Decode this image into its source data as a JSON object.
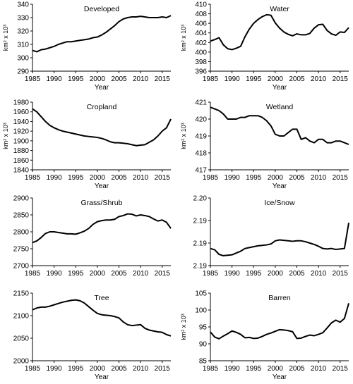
{
  "chart_data": [
    {
      "type": "line",
      "title": "Developed",
      "xlabel": "Year",
      "ylabel": "km² x 10³",
      "xlim": [
        1985,
        2017
      ],
      "ylim": [
        290,
        340
      ],
      "xticks": [
        "1985",
        "1990",
        "1995",
        "2000",
        "2005",
        "2010",
        "2015"
      ],
      "yticks": [
        "290",
        "300",
        "310",
        "320",
        "330",
        "340"
      ],
      "grid": false,
      "legend": "none",
      "x": [
        1985,
        1986,
        1987,
        1988,
        1989,
        1990,
        1991,
        1992,
        1993,
        1994,
        1995,
        1996,
        1997,
        1998,
        1999,
        2000,
        2001,
        2002,
        2003,
        2004,
        2005,
        2006,
        2007,
        2008,
        2009,
        2010,
        2011,
        2012,
        2013,
        2014,
        2015,
        2016,
        2017
      ],
      "series": [
        {
          "values": [
            305.5,
            304.5,
            306,
            306.5,
            307.5,
            308.5,
            310,
            311,
            312,
            312,
            312.5,
            313,
            313.5,
            314,
            315,
            315.5,
            317,
            319,
            321.5,
            324,
            327,
            329,
            330,
            330.5,
            330.5,
            331,
            330.5,
            330,
            330,
            330,
            330.5,
            330,
            331.5
          ]
        }
      ]
    },
    {
      "type": "line",
      "title": "Water",
      "xlabel": "Year",
      "ylabel": "km² x 10³",
      "xlim": [
        1985,
        2017
      ],
      "ylim": [
        396,
        410
      ],
      "xticks": [
        "1985",
        "1990",
        "1995",
        "2000",
        "2005",
        "2010",
        "2015"
      ],
      "yticks": [
        "396",
        "398",
        "400",
        "402",
        "404",
        "406",
        "408",
        "410"
      ],
      "grid": false,
      "legend": "none",
      "x": [
        1985,
        1986,
        1987,
        1988,
        1989,
        1990,
        1991,
        1992,
        1993,
        1994,
        1995,
        1996,
        1997,
        1998,
        1999,
        2000,
        2001,
        2002,
        2003,
        2004,
        2005,
        2006,
        2007,
        2008,
        2009,
        2010,
        2011,
        2012,
        2013,
        2014,
        2015,
        2016,
        2017
      ],
      "series": [
        {
          "values": [
            402.3,
            402.6,
            403,
            401.5,
            400.7,
            400.5,
            400.8,
            401.2,
            403.2,
            404.8,
            406,
            406.8,
            407.4,
            407.8,
            407.7,
            406.1,
            405,
            404.2,
            403.7,
            403.4,
            403.8,
            403.6,
            403.6,
            403.9,
            405,
            405.7,
            405.8,
            404.5,
            403.8,
            403.5,
            404.2,
            404.1,
            405.1
          ]
        }
      ]
    },
    {
      "type": "line",
      "title": "Cropland",
      "xlabel": "Year",
      "ylabel": "km² x 10³",
      "xlim": [
        1985,
        2017
      ],
      "ylim": [
        1840,
        1980
      ],
      "xticks": [
        "1985",
        "1990",
        "1995",
        "2000",
        "2005",
        "2010",
        "2015"
      ],
      "yticks": [
        "1840",
        "1860",
        "1880",
        "1900",
        "1920",
        "1940",
        "1960",
        "1980"
      ],
      "grid": false,
      "legend": "none",
      "x": [
        1985,
        1986,
        1987,
        1988,
        1989,
        1990,
        1991,
        1992,
        1993,
        1994,
        1995,
        1996,
        1997,
        1998,
        1999,
        2000,
        2001,
        2002,
        2003,
        2004,
        2005,
        2006,
        2007,
        2008,
        2009,
        2010,
        2011,
        2012,
        2013,
        2014,
        2015,
        2016,
        2017
      ],
      "series": [
        {
          "values": [
            1966,
            1960,
            1950,
            1940,
            1932,
            1927,
            1923,
            1920,
            1918,
            1916,
            1914,
            1912,
            1910,
            1909,
            1908,
            1907,
            1905,
            1902,
            1898,
            1896,
            1896,
            1895,
            1894,
            1892,
            1890,
            1891,
            1892,
            1897,
            1902,
            1910,
            1920,
            1927,
            1945
          ]
        }
      ]
    },
    {
      "type": "line",
      "title": "Wetland",
      "xlabel": "Year",
      "ylabel": "km² x 10³",
      "xlim": [
        1985,
        2017
      ],
      "ylim": [
        417,
        421
      ],
      "xticks": [
        "1985",
        "1990",
        "1995",
        "2000",
        "2005",
        "2010",
        "2015"
      ],
      "yticks": [
        "417",
        "418",
        "419",
        "420",
        "421"
      ],
      "grid": false,
      "legend": "none",
      "x": [
        1985,
        1986,
        1987,
        1988,
        1989,
        1990,
        1991,
        1992,
        1993,
        1994,
        1995,
        1996,
        1997,
        1998,
        1999,
        2000,
        2001,
        2002,
        2003,
        2004,
        2005,
        2006,
        2007,
        2008,
        2009,
        2010,
        2011,
        2012,
        2013,
        2014,
        2015,
        2016,
        2017
      ],
      "series": [
        {
          "values": [
            420.7,
            420.6,
            420.5,
            420.3,
            420.0,
            420.0,
            420.0,
            420.1,
            420.1,
            420.2,
            420.2,
            420.2,
            420.1,
            419.9,
            419.6,
            419.1,
            419.0,
            419.0,
            419.2,
            419.4,
            419.4,
            418.8,
            418.9,
            418.7,
            418.6,
            418.8,
            418.8,
            418.6,
            418.6,
            418.7,
            418.7,
            418.6,
            418.5
          ]
        }
      ]
    },
    {
      "type": "line",
      "title": "Grass/Shrub",
      "xlabel": "",
      "ylabel": "",
      "xlim": [
        1985,
        2017
      ],
      "ylim": [
        2700,
        2900
      ],
      "xticks": [
        "1985",
        "1990",
        "1995",
        "2000",
        "2005",
        "2010",
        "2015"
      ],
      "yticks": [
        "2700",
        "2750",
        "2800",
        "2850",
        "2900"
      ],
      "grid": false,
      "legend": "none",
      "x": [
        1985,
        1986,
        1987,
        1988,
        1989,
        1990,
        1991,
        1992,
        1993,
        1994,
        1995,
        1996,
        1997,
        1998,
        1999,
        2000,
        2001,
        2002,
        2003,
        2004,
        2005,
        2006,
        2007,
        2008,
        2009,
        2010,
        2011,
        2012,
        2013,
        2014,
        2015,
        2016,
        2017
      ],
      "series": [
        {
          "values": [
            2768,
            2773,
            2783,
            2795,
            2800,
            2800,
            2798,
            2796,
            2794,
            2794,
            2793,
            2797,
            2802,
            2810,
            2822,
            2830,
            2833,
            2835,
            2835,
            2837,
            2845,
            2848,
            2853,
            2852,
            2847,
            2850,
            2848,
            2845,
            2838,
            2832,
            2835,
            2828,
            2810
          ]
        }
      ]
    },
    {
      "type": "line",
      "title": "Ice/Snow",
      "xlabel": "",
      "ylabel": "",
      "xlim": [
        1985,
        2017
      ],
      "ylim": [
        2.185,
        2.2
      ],
      "xticks": [
        "1985",
        "1990",
        "1995",
        "2000",
        "2005",
        "2010",
        "2015"
      ],
      "yticks": [
        "2.19",
        "2.19",
        "2.19",
        "2.20"
      ],
      "grid": false,
      "legend": "none",
      "x": [
        1985,
        1986,
        1987,
        1988,
        1989,
        1990,
        1991,
        1992,
        1993,
        1994,
        1995,
        1996,
        1997,
        1998,
        1999,
        2000,
        2001,
        2002,
        2003,
        2004,
        2005,
        2006,
        2007,
        2008,
        2009,
        2010,
        2011,
        2012,
        2013,
        2014,
        2015,
        2016,
        2017
      ],
      "series": [
        {
          "values": [
            2.1888,
            2.1885,
            2.1875,
            2.1872,
            2.1873,
            2.1874,
            2.1878,
            2.1882,
            2.1888,
            2.189,
            2.1892,
            2.1894,
            2.1895,
            2.1896,
            2.1898,
            2.1905,
            2.1907,
            2.1906,
            2.1905,
            2.1904,
            2.1905,
            2.1905,
            2.1903,
            2.19,
            2.1897,
            2.1893,
            2.1888,
            2.1887,
            2.1888,
            2.1886,
            2.1887,
            2.1888,
            2.1945
          ]
        }
      ]
    },
    {
      "type": "line",
      "title": "Tree",
      "xlabel": "Year",
      "ylabel": "",
      "xlim": [
        1985,
        2017
      ],
      "ylim": [
        2000,
        2150
      ],
      "xticks": [
        "1985",
        "1990",
        "1995",
        "2000",
        "2005",
        "2010",
        "2015"
      ],
      "yticks": [
        "2000",
        "2050",
        "2100",
        "2150"
      ],
      "grid": false,
      "legend": "none",
      "x": [
        1985,
        1986,
        1987,
        1988,
        1989,
        1990,
        1991,
        1992,
        1993,
        1994,
        1995,
        1996,
        1997,
        1998,
        1999,
        2000,
        2001,
        2002,
        2003,
        2004,
        2005,
        2006,
        2007,
        2008,
        2009,
        2010,
        2011,
        2012,
        2013,
        2014,
        2015,
        2016,
        2017
      ],
      "series": [
        {
          "values": [
            2113,
            2117,
            2119,
            2119,
            2121,
            2124,
            2127,
            2130,
            2132,
            2134,
            2135,
            2133,
            2128,
            2120,
            2112,
            2105,
            2102,
            2101,
            2100,
            2098,
            2095,
            2086,
            2080,
            2078,
            2079,
            2080,
            2072,
            2068,
            2066,
            2064,
            2063,
            2058,
            2055
          ]
        }
      ]
    },
    {
      "type": "line",
      "title": "Barren",
      "xlabel": "Year",
      "ylabel": "km² x 10³",
      "xlim": [
        1985,
        2017
      ],
      "ylim": [
        85,
        105
      ],
      "xticks": [
        "1985",
        "1990",
        "1995",
        "2000",
        "2005",
        "2010",
        "2015"
      ],
      "yticks": [
        "85",
        "90",
        "95",
        "100",
        "105"
      ],
      "grid": false,
      "legend": "none",
      "x": [
        1985,
        1986,
        1987,
        1988,
        1989,
        1990,
        1991,
        1992,
        1993,
        1994,
        1995,
        1996,
        1997,
        1998,
        1999,
        2000,
        2001,
        2002,
        2003,
        2004,
        2005,
        2006,
        2007,
        2008,
        2009,
        2010,
        2011,
        2012,
        2013,
        2014,
        2015,
        2016,
        2017
      ],
      "series": [
        {
          "values": [
            93.5,
            92.0,
            91.5,
            92.3,
            93.0,
            93.8,
            93.4,
            92.8,
            91.8,
            91.9,
            91.6,
            91.7,
            92.2,
            92.8,
            93.2,
            93.7,
            94.2,
            94.1,
            93.9,
            93.6,
            91.6,
            91.7,
            92.2,
            92.6,
            92.4,
            92.8,
            93.3,
            94.7,
            96.2,
            97.0,
            96.4,
            97.5,
            102.0
          ]
        }
      ]
    }
  ]
}
